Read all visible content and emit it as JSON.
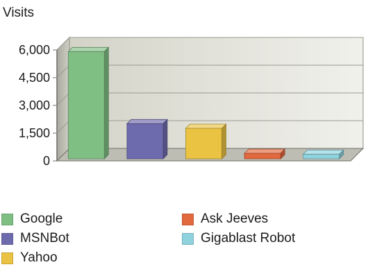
{
  "chart_data": {
    "type": "bar",
    "ylabel": "Visits",
    "categories": [
      "Google",
      "MSNBot",
      "Yahoo",
      "Ask Jeeves",
      "Gigablast Robot"
    ],
    "values": [
      5800,
      1900,
      1650,
      300,
      250
    ],
    "ylim": [
      0,
      6000
    ],
    "yticks": [
      "0",
      "1,500",
      "3,000",
      "4,500",
      "6,000"
    ],
    "ytick_values": [
      0,
      1500,
      3000,
      4500,
      6000
    ],
    "grid": true,
    "three_d": true,
    "legend_position": "bottom",
    "colors": [
      "#7fbf84",
      "#6e6aae",
      "#eac343",
      "#e2683e",
      "#8fd3de"
    ]
  }
}
